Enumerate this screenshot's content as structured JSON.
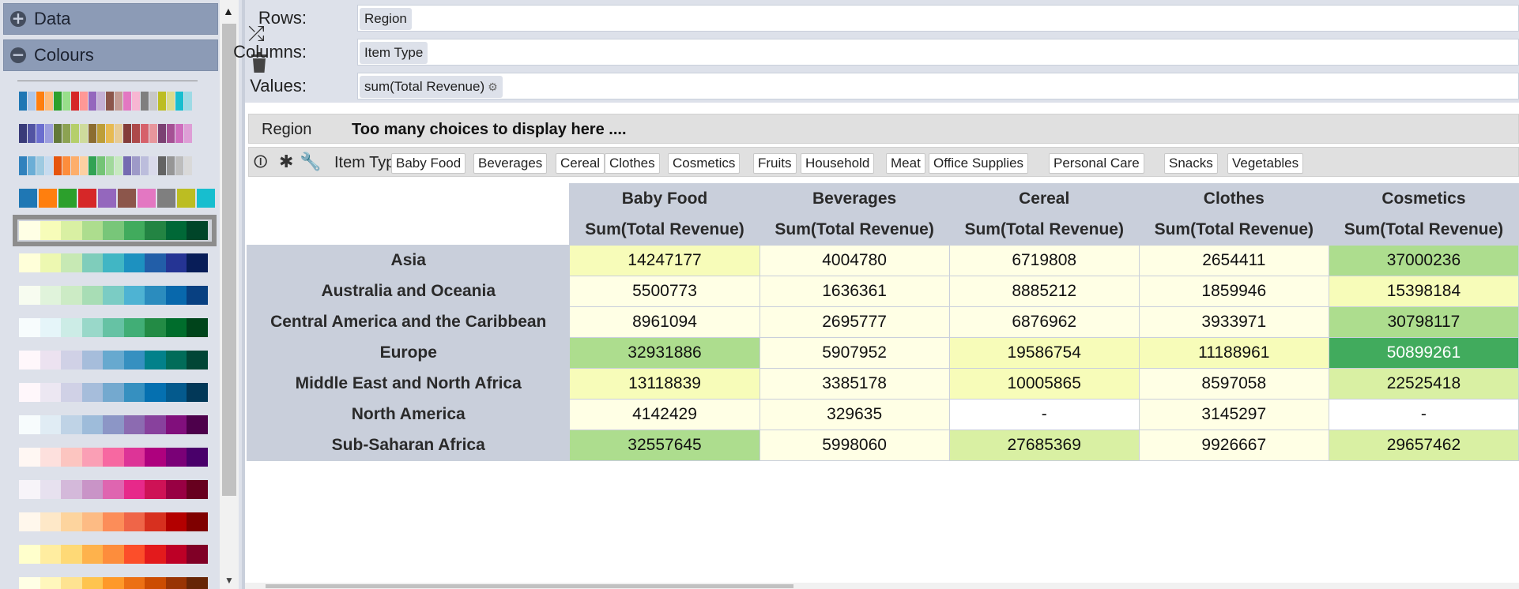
{
  "sidebar": {
    "sections": [
      {
        "label": "Data",
        "icon": "plus-icon"
      },
      {
        "label": "Colours",
        "icon": "minus-icon"
      }
    ],
    "palettes": [
      {
        "type": "narrow",
        "colors": [
          "#1f77b4",
          "#aec7e8",
          "#ff7f0e",
          "#ffbb78",
          "#2ca02c",
          "#98df8a",
          "#d62728",
          "#ff9896",
          "#9467bd",
          "#c5b0d5",
          "#8c564b",
          "#c49c94",
          "#e377c2",
          "#f7b6d2",
          "#7f7f7f",
          "#c7c7c7",
          "#bcbd22",
          "#dbdb8d",
          "#17becf",
          "#9edae5"
        ]
      },
      {
        "type": "narrow",
        "colors": [
          "#393b79",
          "#5254a3",
          "#6b6ecf",
          "#9c9ede",
          "#637939",
          "#8ca252",
          "#b5cf6b",
          "#cedb9c",
          "#8c6d31",
          "#bd9e39",
          "#e7ba52",
          "#e7cb94",
          "#843c39",
          "#ad494a",
          "#d6616b",
          "#e7969c",
          "#7b4173",
          "#a55194",
          "#ce6dbd",
          "#de9ed6"
        ]
      },
      {
        "type": "narrow",
        "colors": [
          "#3182bd",
          "#6baed6",
          "#9ecae1",
          "#c6dbef",
          "#e6550d",
          "#fd8d3c",
          "#fdae6b",
          "#fdd0a2",
          "#31a354",
          "#74c476",
          "#a1d99b",
          "#c7e9c0",
          "#756bb1",
          "#9e9ac8",
          "#bcbddc",
          "#dadaeb",
          "#636363",
          "#969696",
          "#bdbdbd",
          "#d9d9d9"
        ]
      },
      {
        "type": "mid",
        "colors": [
          "#1f77b4",
          "#ff7f0e",
          "#2ca02c",
          "#d62728",
          "#9467bd",
          "#8c564b",
          "#e377c2",
          "#7f7f7f",
          "#bcbd22",
          "#17becf"
        ]
      },
      {
        "type": "wide",
        "selected": true,
        "colors": [
          "#ffffe5",
          "#f7fcb9",
          "#d9f0a3",
          "#addd8e",
          "#78c679",
          "#41ab5d",
          "#238443",
          "#006837",
          "#004529"
        ]
      },
      {
        "type": "wide",
        "colors": [
          "#ffffd9",
          "#edf8b1",
          "#c7e9b4",
          "#7fcdbb",
          "#41b6c4",
          "#1d91c0",
          "#225ea8",
          "#253494",
          "#081d58"
        ]
      },
      {
        "type": "wide",
        "colors": [
          "#f7fcf0",
          "#e0f3db",
          "#ccebc5",
          "#a8ddb5",
          "#7bccc4",
          "#4eb3d3",
          "#2b8cbe",
          "#0868ac",
          "#084081"
        ]
      },
      {
        "type": "wide",
        "colors": [
          "#f7fcfd",
          "#e5f5f9",
          "#ccece6",
          "#99d8c9",
          "#66c2a4",
          "#41ae76",
          "#238b45",
          "#006d2c",
          "#00441b"
        ]
      },
      {
        "type": "wide",
        "colors": [
          "#fff7fb",
          "#ece2f0",
          "#d0d1e6",
          "#a6bddb",
          "#67a9cf",
          "#3690c0",
          "#02818a",
          "#016c59",
          "#014636"
        ]
      },
      {
        "type": "wide",
        "colors": [
          "#fff7fb",
          "#ece7f2",
          "#d0d1e6",
          "#a6bddb",
          "#74a9cf",
          "#3690c0",
          "#0570b0",
          "#045a8d",
          "#023858"
        ]
      },
      {
        "type": "wide",
        "colors": [
          "#f7fcfd",
          "#e0ecf4",
          "#bfd3e6",
          "#9ebcda",
          "#8c96c6",
          "#8c6bb1",
          "#88419d",
          "#810f7c",
          "#4d004b"
        ]
      },
      {
        "type": "wide",
        "colors": [
          "#fff7f3",
          "#fde0dd",
          "#fcc5c0",
          "#fa9fb5",
          "#f768a1",
          "#dd3497",
          "#ae017e",
          "#7a0177",
          "#49006a"
        ]
      },
      {
        "type": "wide",
        "colors": [
          "#f7f4f9",
          "#e7e1ef",
          "#d4b9da",
          "#c994c7",
          "#df65b0",
          "#e7298a",
          "#ce1256",
          "#980043",
          "#67001f"
        ]
      },
      {
        "type": "wide",
        "colors": [
          "#fff7ec",
          "#fee8c8",
          "#fdd49e",
          "#fdbb84",
          "#fc8d59",
          "#ef6548",
          "#d7301f",
          "#b30000",
          "#7f0000"
        ]
      },
      {
        "type": "wide",
        "colors": [
          "#ffffcc",
          "#ffeda0",
          "#fed976",
          "#feb24c",
          "#fd8d3c",
          "#fc4e2a",
          "#e31a1c",
          "#bd0026",
          "#800026"
        ]
      },
      {
        "type": "wide",
        "colors": [
          "#ffffe5",
          "#fff7bc",
          "#fee391",
          "#fec44f",
          "#fe9929",
          "#ec7014",
          "#cc4c02",
          "#993404",
          "#662506"
        ]
      }
    ]
  },
  "config": {
    "rows_label": "Rows:",
    "rows_value": "Region",
    "columns_label": "Columns:",
    "columns_value": "Item Type",
    "values_label": "Values:",
    "values_value": "sum(Total Revenue)",
    "gear_glyph": "⚙"
  },
  "filters": {
    "region_name": "Region",
    "region_message": "Too many choices to display here ....",
    "item_type_name": "Item Type",
    "item_types": [
      "Baby Food",
      "Beverages",
      "Cereal",
      "Clothes",
      "Cosmetics",
      "Fruits",
      "Household",
      "Meat",
      "Office Supplies",
      "Personal Care",
      "Snacks",
      "Vegetables"
    ]
  },
  "table": {
    "columns": [
      "Baby Food",
      "Beverages",
      "Cereal",
      "Clothes",
      "Cosmetics"
    ],
    "measure_label": "Sum(Total Revenue)",
    "rows": [
      {
        "region": "Asia",
        "values": [
          "14247177",
          "4004780",
          "6719808",
          "2654411",
          "37000236"
        ],
        "colors": [
          "#f7fcb9",
          "#ffffe5",
          "#ffffe5",
          "#ffffe5",
          "#addd8e"
        ]
      },
      {
        "region": "Australia and Oceania",
        "values": [
          "5500773",
          "1636361",
          "8885212",
          "1859946",
          "15398184"
        ],
        "colors": [
          "#ffffe5",
          "#ffffe5",
          "#ffffe5",
          "#ffffe5",
          "#f7fcb9"
        ]
      },
      {
        "region": "Central America and the Caribbean",
        "values": [
          "8961094",
          "2695777",
          "6876962",
          "3933971",
          "30798117"
        ],
        "colors": [
          "#ffffe5",
          "#ffffe5",
          "#ffffe5",
          "#ffffe5",
          "#addd8e"
        ]
      },
      {
        "region": "Europe",
        "values": [
          "32931886",
          "5907952",
          "19586754",
          "11188961",
          "50899261"
        ],
        "colors": [
          "#addd8e",
          "#ffffe5",
          "#f7fcb9",
          "#f7fcb9",
          "#41ab5d"
        ]
      },
      {
        "region": "Middle East and North Africa",
        "values": [
          "13118839",
          "3385178",
          "10005865",
          "8597058",
          "22525418"
        ],
        "colors": [
          "#f7fcb9",
          "#ffffe5",
          "#f7fcb9",
          "#ffffe5",
          "#d9f0a3"
        ]
      },
      {
        "region": "North America",
        "values": [
          "4142429",
          "329635",
          "-",
          "3145297",
          "-"
        ],
        "colors": [
          "#ffffe5",
          "#ffffe5",
          "#ffffff",
          "#ffffe5",
          "#ffffff"
        ]
      },
      {
        "region": "Sub-Saharan Africa",
        "values": [
          "32557645",
          "5998060",
          "27685369",
          "9926667",
          "29657462"
        ],
        "colors": [
          "#addd8e",
          "#ffffe5",
          "#d9f0a3",
          "#ffffe5",
          "#d9f0a3"
        ]
      }
    ],
    "text_light": "#ffffff",
    "text_dark": "#111111"
  }
}
